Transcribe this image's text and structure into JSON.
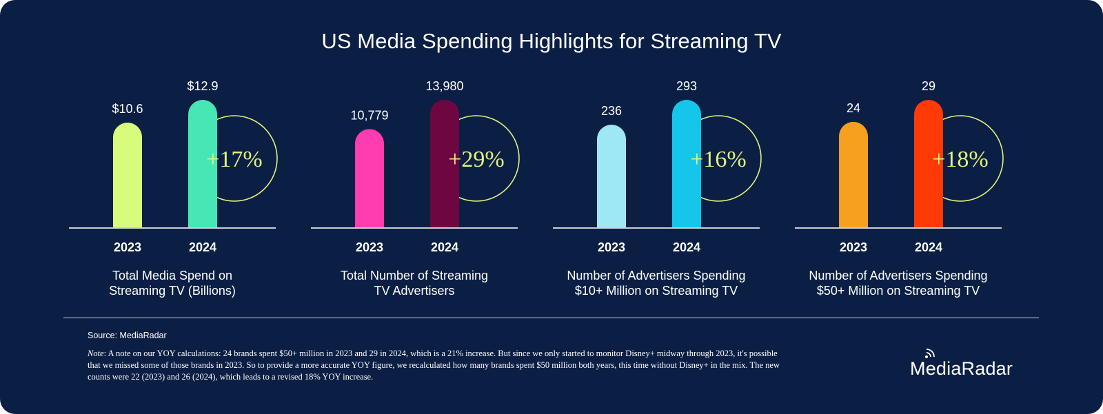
{
  "title": "US Media Spending Highlights for Streaming TV",
  "source": "Source: MediaRadar",
  "note_label": "Note",
  "note_text": ": A note on our YOY calculations: 24 brands spent $50+ million in 2023 and 29 in 2024, which is a 21% increase. But since we only started to monitor Disney+ midway through 2023, it's possible that we missed some of those brands in 2023. So to provide a more accurate YOY figure, we recalculated how many brands spent $50 million both years, this time without Disney+ in the mix. The new counts were 22 (2023) and 26 (2024), which leads to a revised 18% YOY increase.",
  "brand": "MediaRadar",
  "colors": {
    "background": "#0b1f45",
    "circle": "#e3f27a",
    "baseline": "#c9ced8"
  },
  "chart_data": [
    {
      "type": "bar",
      "caption": "Total Media Spend on\nStreaming TV (Billions)",
      "categories": [
        "2023",
        "2024"
      ],
      "values": [
        10.6,
        12.9
      ],
      "labels": [
        "$10.6",
        "$12.9"
      ],
      "change": "+17%",
      "colors": [
        "#d6fb7d",
        "#47e6b5"
      ]
    },
    {
      "type": "bar",
      "caption": "Total Number of Streaming\nTV Advertisers",
      "categories": [
        "2023",
        "2024"
      ],
      "values": [
        10779,
        13980
      ],
      "labels": [
        "10,779",
        "13,980"
      ],
      "change": "+29%",
      "colors": [
        "#ff3db0",
        "#6e0741"
      ]
    },
    {
      "type": "bar",
      "caption": "Number of Advertisers Spending\n$10+ Million on Streaming TV",
      "categories": [
        "2023",
        "2024"
      ],
      "values": [
        236,
        293
      ],
      "labels": [
        "236",
        "293"
      ],
      "change": "+16%",
      "colors": [
        "#9ee8f6",
        "#16c6ea"
      ]
    },
    {
      "type": "bar",
      "caption": "Number of Advertisers Spending\n$50+ Million on Streaming TV",
      "categories": [
        "2023",
        "2024"
      ],
      "values": [
        24,
        29
      ],
      "labels": [
        "24",
        "29"
      ],
      "change": "+18%",
      "colors": [
        "#f7a020",
        "#ff3a06"
      ]
    }
  ]
}
